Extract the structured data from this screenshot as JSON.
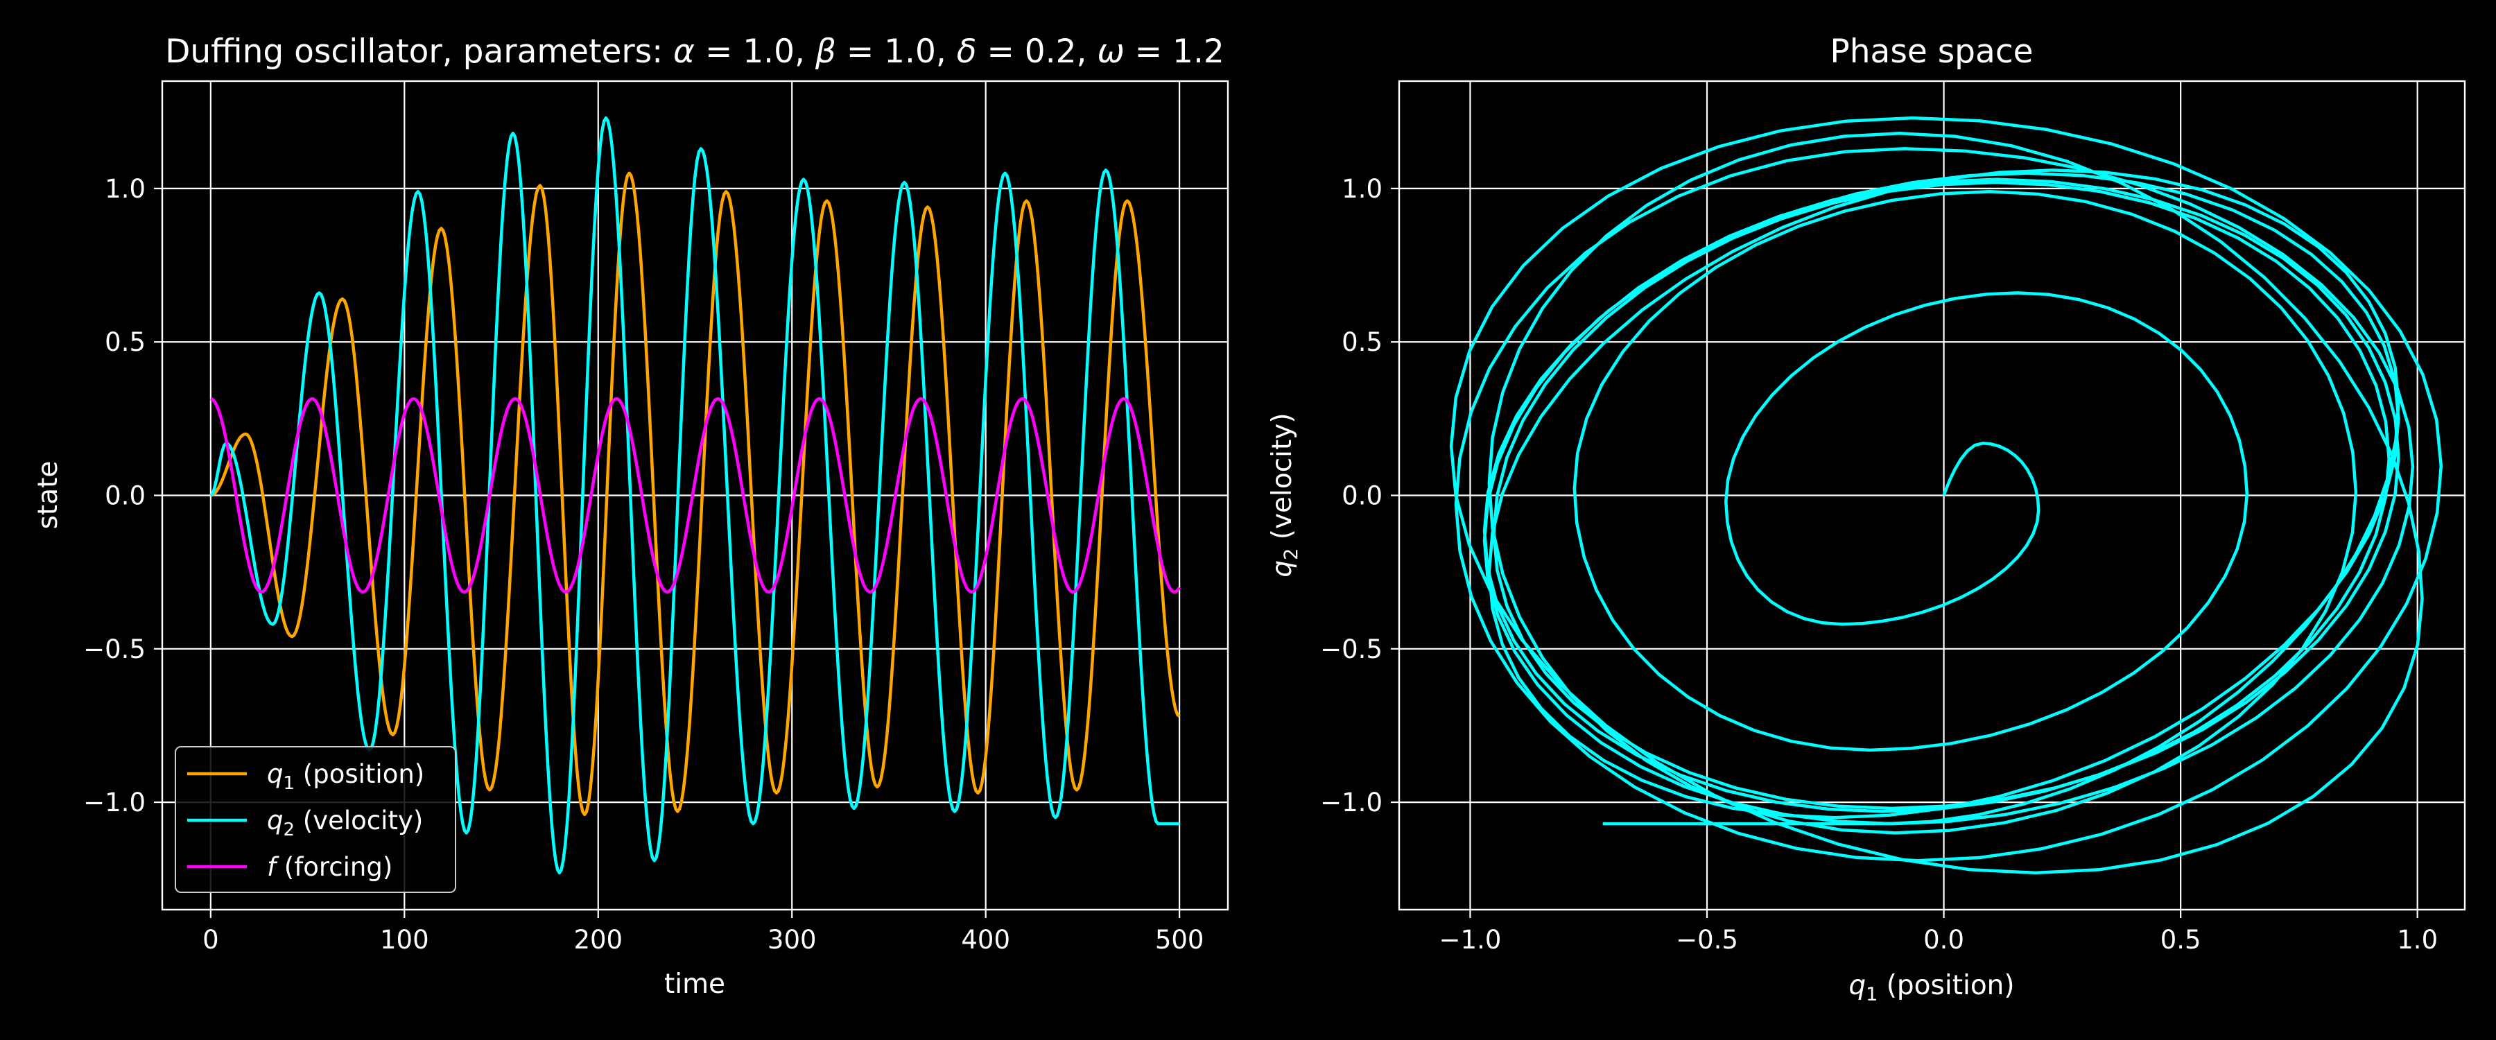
{
  "chart_data": [
    {
      "type": "line",
      "title": "Duffing oscillator, parameters: α = 1.0, β = 1.0, δ = 0.2, ω = 1.2",
      "xlabel": "time",
      "ylabel": "state",
      "xlim": [
        -25,
        525
      ],
      "ylim": [
        -1.35,
        1.35
      ],
      "xticks": [
        0,
        100,
        200,
        300,
        400,
        500
      ],
      "xtick_labels": [
        "0",
        "100",
        "200",
        "300",
        "400",
        "500"
      ],
      "yticks": [
        -1.0,
        -0.5,
        0.0,
        0.5,
        1.0
      ],
      "ytick_labels": [
        "−1.0",
        "−0.5",
        "0.0",
        "0.5",
        "1.0"
      ],
      "grid": true,
      "legend_position": "lower-left",
      "x": {
        "start": 0,
        "end": 500,
        "step": 1
      },
      "series": [
        {
          "name": "q1 (position)",
          "legend_symbol": "q",
          "legend_subscript": "1",
          "legend_suffix": " (position)",
          "color": "#FFA500",
          "peaks_max": [
            [
              18,
              0.2
            ],
            [
              68,
              0.64
            ],
            [
              119,
              0.87
            ],
            [
              170,
              1.01
            ],
            [
              216,
              1.05
            ],
            [
              266,
              0.99
            ],
            [
              318,
              0.96
            ],
            [
              370,
              0.94
            ],
            [
              421,
              0.96
            ],
            [
              473,
              0.96
            ]
          ],
          "peaks_min": [
            [
              42,
              -0.46
            ],
            [
              94,
              -0.78
            ],
            [
              144,
              -0.96
            ],
            [
              193,
              -1.04
            ],
            [
              241,
              -1.03
            ],
            [
              292,
              -0.97
            ],
            [
              344,
              -0.95
            ],
            [
              396,
              -0.97
            ],
            [
              447,
              -0.96
            ],
            [
              500,
              -0.72
            ]
          ]
        },
        {
          "name": "q2 (velocity)",
          "legend_symbol": "q",
          "legend_subscript": "2",
          "legend_suffix": " (velocity)",
          "color": "#00FFFF",
          "peaks_max": [
            [
              8,
              0.17
            ],
            [
              56,
              0.66
            ],
            [
              107,
              0.99
            ],
            [
              156,
              1.18
            ],
            [
              204,
              1.23
            ],
            [
              253,
              1.13
            ],
            [
              306,
              1.03
            ],
            [
              358,
              1.02
            ],
            [
              410,
              1.05
            ],
            [
              462,
              1.06
            ]
          ],
          "peaks_min": [
            [
              32,
              -0.42
            ],
            [
              82,
              -0.83
            ],
            [
              132,
              -1.1
            ],
            [
              180,
              -1.23
            ],
            [
              229,
              -1.19
            ],
            [
              280,
              -1.07
            ],
            [
              332,
              -1.02
            ],
            [
              384,
              -1.03
            ],
            [
              436,
              -1.05
            ],
            [
              489,
              -1.07
            ]
          ]
        },
        {
          "name": "f (forcing)",
          "legend_symbol": "f",
          "legend_subscript": "",
          "legend_suffix": " (forcing)",
          "color": "#FF00FF",
          "form": "amplitude*cos(omega*t*dt)",
          "amplitude": 0.315,
          "omega": 1.2,
          "dt": 0.1
        }
      ]
    },
    {
      "type": "line",
      "title": "Phase space",
      "xlabel": "q1 (position)",
      "ylabel": "q2 (velocity)",
      "xlim": [
        -1.15,
        1.1
      ],
      "ylim": [
        -1.35,
        1.35
      ],
      "xticks": [
        -1.0,
        -0.5,
        0.0,
        0.5,
        1.0
      ],
      "xtick_labels": [
        "−1.0",
        "−0.5",
        "0.0",
        "0.5",
        "1.0"
      ],
      "yticks": [
        -1.0,
        -0.5,
        0.0,
        0.5,
        1.0
      ],
      "ytick_labels": [
        "−1.0",
        "−0.5",
        "0.0",
        "0.5",
        "1.0"
      ],
      "grid": true,
      "trajectory": {
        "color": "#00FFFF",
        "x_series": "q1 (position)",
        "y_series": "q2 (velocity)"
      }
    }
  ]
}
